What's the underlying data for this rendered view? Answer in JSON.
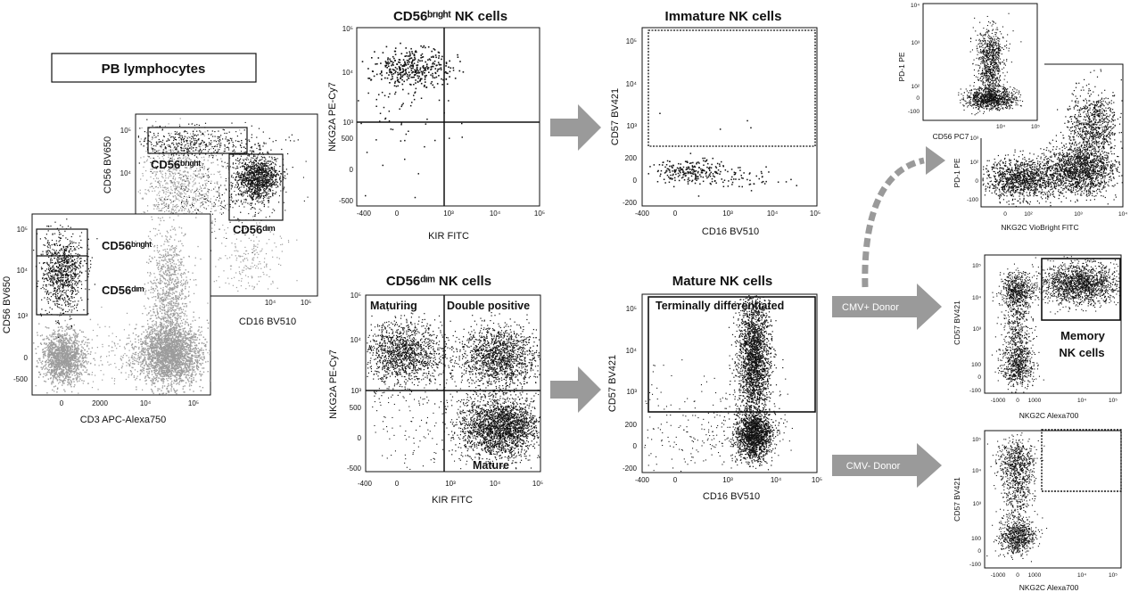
{
  "colors": {
    "dots": "#111111",
    "grey_dots": "#9c9c9c",
    "arrow": "#9a9a9a",
    "gate": "#111111"
  },
  "pb": {
    "title": "PB lymphocytes",
    "main": {
      "xlabel": "CD3 APC-Alexa750",
      "ylabel": "CD56 BV650",
      "xticks": [
        "0",
        "2000",
        "10⁴",
        "10⁵"
      ],
      "yticks": [
        "10⁵",
        "10⁴",
        "10³",
        "0",
        "-500"
      ],
      "gate_bright": "CD56ᵇʳᶦᵍʰᵗ",
      "gate_dim": "CD56ᵈᶦᵐ"
    },
    "inset": {
      "xlabel": "CD16 BV510",
      "ylabel": "CD56 BV650",
      "yticks": [
        "10⁵",
        "10⁴"
      ],
      "xticks": [
        "10⁴",
        "10⁵"
      ],
      "gate_bright": "CD56ᵇʳᶦᵍʰᵗ",
      "gate_dim": "CD56ᵈᶦᵐ"
    }
  },
  "bright_nk": {
    "title": "CD56ᵇʳᶦᵍʰᵗ NK cells",
    "xlabel": "KIR FITC",
    "ylabel": "NKG2A PE-Cy7",
    "xticks": [
      "-400",
      "0",
      "10³",
      "10⁴",
      "10⁵"
    ],
    "yticks": [
      "10⁵",
      "10⁴",
      "10³",
      "500",
      "0",
      "-500"
    ]
  },
  "dim_nk": {
    "title": "CD56ᵈᶦᵐ NK cells",
    "xlabel": "KIR FITC",
    "ylabel": "NKG2A PE-Cy7",
    "xticks": [
      "-400",
      "0",
      "10³",
      "10⁴",
      "10⁵"
    ],
    "yticks": [
      "10⁵",
      "10⁴",
      "10³",
      "500",
      "0",
      "-500"
    ],
    "q_maturing": "Maturing",
    "q_double": "Double positive",
    "q_mature": "Mature"
  },
  "immature": {
    "title": "Immature NK cells",
    "xlabel": "CD16 BV510",
    "ylabel": "CD57 BV421",
    "xticks": [
      "-400",
      "0",
      "10³",
      "10⁴",
      "10⁵"
    ],
    "yticks": [
      "10⁵",
      "10⁴",
      "10³",
      "200",
      "0",
      "-200"
    ]
  },
  "mature": {
    "title": "Mature NK cells",
    "xlabel": "CD16 BV510",
    "ylabel": "CD57 BV421",
    "xticks": [
      "-400",
      "0",
      "10³",
      "10⁴",
      "10⁵"
    ],
    "yticks": [
      "10⁵",
      "10⁴",
      "10³",
      "200",
      "0",
      "-200"
    ],
    "gate": "Terminally differentiated"
  },
  "pd1": {
    "inset": {
      "xlabel": "CD56 PC7",
      "ylabel": "PD-1 PE",
      "yticks": [
        "10⁴",
        "10³",
        "10²",
        "0",
        "-100"
      ],
      "xticks": [
        "10⁴",
        "10⁵"
      ]
    },
    "main": {
      "xlabel": "NKG2C VioBright FITC",
      "ylabel": "PD-1 PE",
      "yticks": [
        "10³",
        "10²",
        "0",
        "-100"
      ],
      "xticks": [
        "0",
        "10²",
        "10³",
        "10⁴"
      ]
    }
  },
  "cmv_pos": {
    "label": "CMV+ Donor",
    "xlabel": "NKG2C Alexa700",
    "ylabel": "CD57 BV421",
    "xticks": [
      "-1000",
      "0",
      "1000",
      "10⁴",
      "10⁵"
    ],
    "yticks": [
      "10⁵",
      "10⁴",
      "10³",
      "100",
      "0",
      "-100"
    ],
    "gate_line1": "Memory",
    "gate_line2": "NK cells"
  },
  "cmv_neg": {
    "label": "CMV- Donor",
    "xlabel": "NKG2C Alexa700",
    "ylabel": "CD57 BV421",
    "xticks": [
      "-1000",
      "0",
      "1000",
      "10⁴",
      "10⁵"
    ],
    "yticks": [
      "10⁵",
      "10⁴",
      "10³",
      "100",
      "0",
      "-100"
    ]
  }
}
